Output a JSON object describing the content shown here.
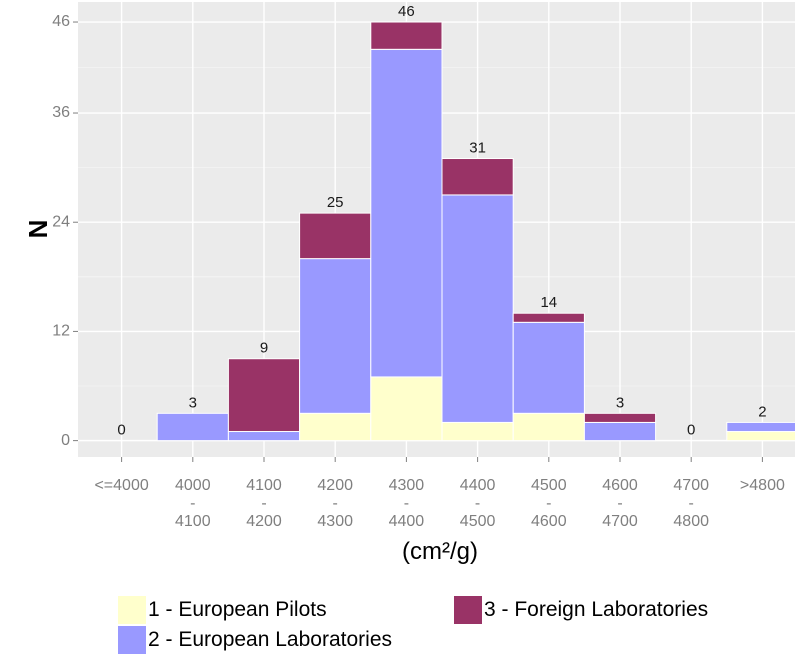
{
  "chart_data": {
    "type": "bar",
    "stacked": true,
    "xlabel": "(cm²/g)",
    "ylabel": "N",
    "ylim": [
      -1.8,
      48.2
    ],
    "yticks": [
      0,
      12,
      24,
      36,
      46
    ],
    "grid": true,
    "legend_position": "bottom",
    "categories": [
      [
        "<=4000"
      ],
      [
        "4000",
        "-",
        "4100"
      ],
      [
        "4100",
        "-",
        "4200"
      ],
      [
        "4200",
        "-",
        "4300"
      ],
      [
        "4300",
        "-",
        "4400"
      ],
      [
        "4400",
        "-",
        "4500"
      ],
      [
        "4500",
        "-",
        "4600"
      ],
      [
        "4600",
        "-",
        "4700"
      ],
      [
        "4700",
        "-",
        "4800"
      ],
      [
        ">4800"
      ]
    ],
    "series": [
      {
        "name": "1 - European Pilots",
        "color": "#FFFFCC",
        "values": [
          0,
          0,
          0,
          3,
          7,
          2,
          3,
          0,
          0,
          1
        ]
      },
      {
        "name": "2 - European Laboratories",
        "color": "#9999FF",
        "values": [
          0,
          3,
          1,
          17,
          36,
          25,
          10,
          2,
          0,
          1
        ]
      },
      {
        "name": "3 - Foreign Laboratories",
        "color": "#993366",
        "values": [
          0,
          0,
          8,
          5,
          3,
          4,
          1,
          1,
          0,
          0
        ]
      }
    ],
    "totals": [
      0,
      3,
      9,
      25,
      46,
      31,
      14,
      3,
      0,
      2
    ]
  },
  "legend": {
    "items": [
      {
        "label": "1 - European Pilots",
        "color": "#FFFFCC"
      },
      {
        "label": "3 - Foreign Laboratories",
        "color": "#993366"
      },
      {
        "label": "2 - European Laboratories",
        "color": "#9999FF"
      }
    ]
  }
}
